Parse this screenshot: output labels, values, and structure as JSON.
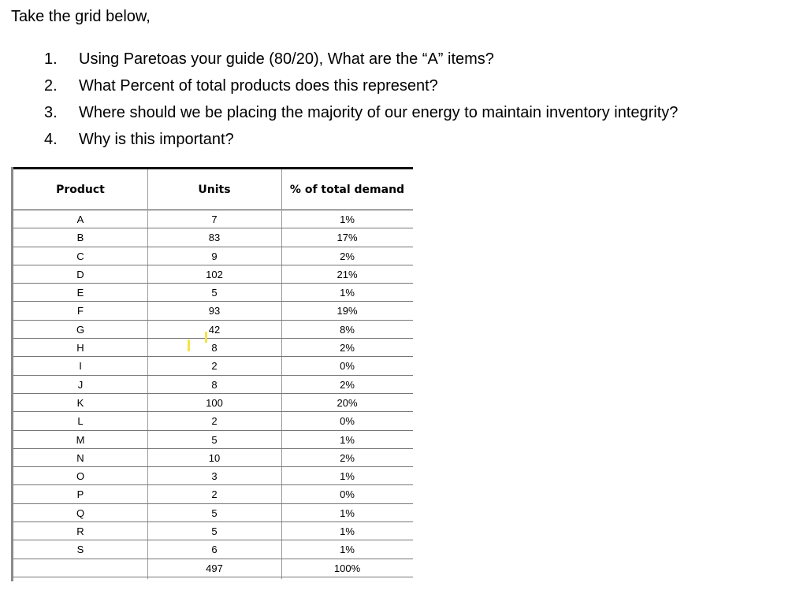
{
  "intro": "Take the grid below,",
  "questions": [
    {
      "num": "1.",
      "text": "Using Paretoas your guide (80/20), What are the “A” items?"
    },
    {
      "num": "2.",
      "text": "What Percent of total products does this represent?"
    },
    {
      "num": "3.",
      "text": "Where should we be placing the majority of our energy to maintain inventory integrity?"
    },
    {
      "num": "4.",
      "text": "Why is this important?"
    }
  ],
  "table": {
    "headers": {
      "product": "Product",
      "units": "Units",
      "pct": "% of total demand"
    },
    "rows": [
      {
        "product": "A",
        "units": "7",
        "pct": "1%"
      },
      {
        "product": "B",
        "units": "83",
        "pct": "17%"
      },
      {
        "product": "C",
        "units": "9",
        "pct": "2%"
      },
      {
        "product": "D",
        "units": "102",
        "pct": "21%"
      },
      {
        "product": "E",
        "units": "5",
        "pct": "1%"
      },
      {
        "product": "F",
        "units": "93",
        "pct": "19%"
      },
      {
        "product": "G",
        "units": "42",
        "pct": "8%"
      },
      {
        "product": "H",
        "units": "8",
        "pct": "2%"
      },
      {
        "product": "I",
        "units": "2",
        "pct": "0%"
      },
      {
        "product": "J",
        "units": "8",
        "pct": "2%"
      },
      {
        "product": "K",
        "units": "100",
        "pct": "20%"
      },
      {
        "product": "L",
        "units": "2",
        "pct": "0%"
      },
      {
        "product": "M",
        "units": "5",
        "pct": "1%"
      },
      {
        "product": "N",
        "units": "10",
        "pct": "2%"
      },
      {
        "product": "O",
        "units": "3",
        "pct": "1%"
      },
      {
        "product": "P",
        "units": "2",
        "pct": "0%"
      },
      {
        "product": "Q",
        "units": "5",
        "pct": "1%"
      },
      {
        "product": "R",
        "units": "5",
        "pct": "1%"
      },
      {
        "product": "S",
        "units": "6",
        "pct": "1%"
      },
      {
        "product": "",
        "units": "497",
        "pct": "100%"
      }
    ]
  },
  "highlight_color": "#f3e34a"
}
